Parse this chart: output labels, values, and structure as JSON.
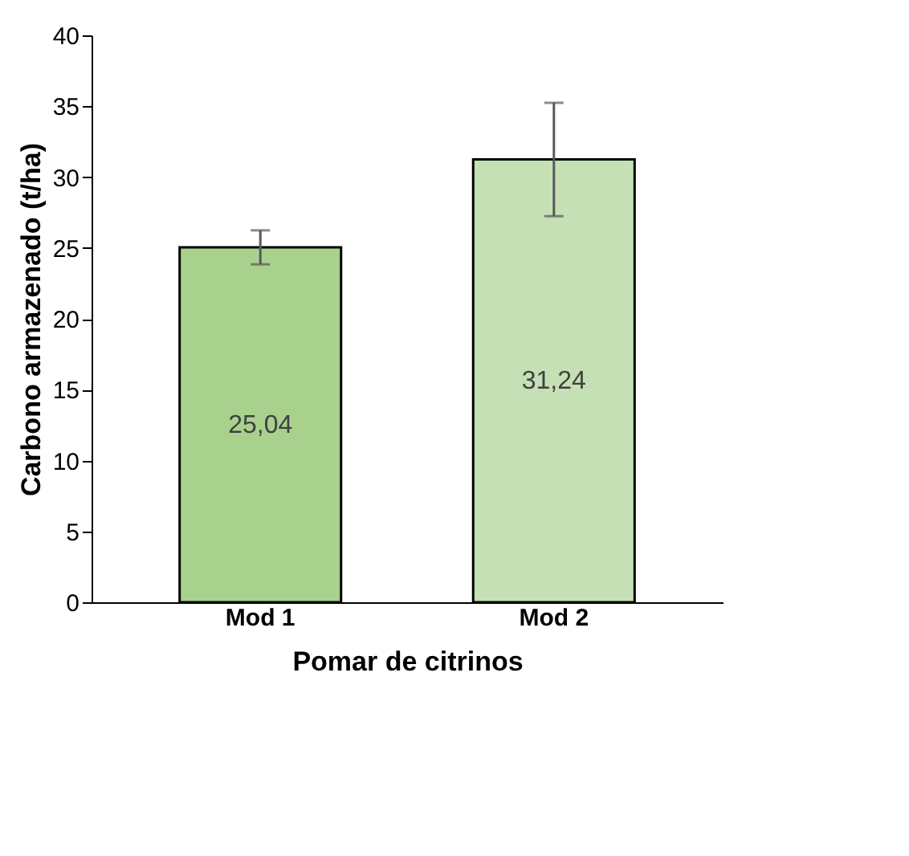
{
  "chart_data": {
    "type": "bar",
    "xlabel": "Pomar de citrinos",
    "ylabel": "Carbono armazenado (t/ha)",
    "categories": [
      "Mod 1",
      "Mod 2"
    ],
    "values": [
      25.04,
      31.24
    ],
    "colors": [
      "#a9d18e",
      "#c5e0b4"
    ],
    "errors": [
      1.2,
      4.0
    ],
    "value_labels": [
      "25,04",
      "31,24"
    ],
    "ylim": [
      0,
      40
    ],
    "yticks": [
      0,
      5,
      10,
      15,
      20,
      25,
      30,
      35,
      40
    ],
    "grid": false
  }
}
